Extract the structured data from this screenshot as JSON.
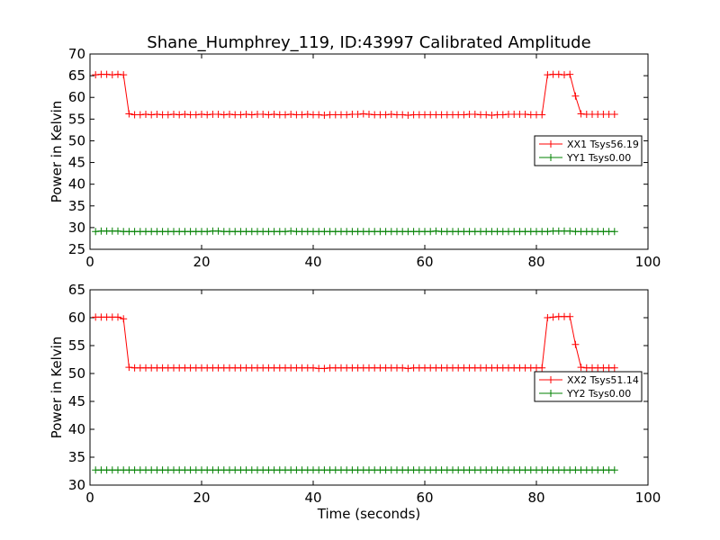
{
  "figure": {
    "title": "Shane_Humphrey_119, ID:43997 Calibrated Amplitude",
    "xlabel": "Time (seconds)"
  },
  "chart_data": [
    {
      "type": "line",
      "title": "Shane_Humphrey_119, ID:43997 Calibrated Amplitude",
      "xlabel": "",
      "ylabel": "Power in Kelvin",
      "xlim": [
        0,
        100
      ],
      "ylim": [
        25,
        70
      ],
      "xticks": [
        "0",
        "20",
        "40",
        "60",
        "80",
        "100"
      ],
      "yticks": [
        "25",
        "30",
        "35",
        "40",
        "45",
        "50",
        "55",
        "60",
        "65",
        "70"
      ],
      "grid": false,
      "legend_position": "center-right",
      "x": [
        1,
        2,
        3,
        4,
        5,
        6,
        7,
        8,
        9,
        10,
        11,
        12,
        13,
        14,
        15,
        16,
        17,
        18,
        19,
        20,
        21,
        22,
        23,
        24,
        25,
        26,
        27,
        28,
        29,
        30,
        31,
        32,
        33,
        34,
        35,
        36,
        37,
        38,
        39,
        40,
        41,
        42,
        43,
        44,
        45,
        46,
        47,
        48,
        49,
        50,
        51,
        52,
        53,
        54,
        55,
        56,
        57,
        58,
        59,
        60,
        61,
        62,
        63,
        64,
        65,
        66,
        67,
        68,
        69,
        70,
        71,
        72,
        73,
        74,
        75,
        76,
        77,
        78,
        79,
        80,
        81,
        82,
        83,
        84,
        85,
        86,
        87,
        88,
        89,
        90,
        91,
        92,
        93,
        94
      ],
      "series": [
        {
          "name": "XX1 Tsys56.19",
          "color": "#ff0000",
          "values": [
            65.2,
            65.3,
            65.3,
            65.2,
            65.3,
            65.2,
            56.2,
            56.0,
            56.0,
            56.1,
            56.0,
            56.1,
            56.0,
            56.0,
            56.1,
            56.0,
            56.1,
            56.0,
            56.0,
            56.1,
            56.0,
            56.1,
            56.1,
            56.0,
            56.1,
            56.0,
            56.0,
            56.1,
            56.0,
            56.1,
            56.1,
            56.0,
            56.1,
            56.0,
            56.0,
            56.1,
            56.0,
            56.0,
            56.1,
            56.0,
            56.0,
            55.9,
            56.0,
            56.0,
            56.0,
            56.0,
            56.1,
            56.1,
            56.2,
            56.1,
            56.0,
            56.0,
            56.0,
            56.1,
            56.0,
            56.0,
            55.9,
            56.0,
            56.0,
            56.0,
            56.0,
            56.0,
            56.0,
            56.0,
            56.0,
            56.0,
            56.0,
            56.1,
            56.1,
            56.0,
            56.0,
            55.9,
            56.0,
            56.0,
            56.1,
            56.1,
            56.1,
            56.1,
            56.0,
            56.0,
            56.0,
            65.2,
            65.3,
            65.3,
            65.2,
            65.3,
            60.3,
            56.2,
            56.1,
            56.1,
            56.1,
            56.1,
            56.1,
            56.1
          ]
        },
        {
          "name": "YY1 Tsys0.00",
          "color": "#008000",
          "values": [
            29.1,
            29.2,
            29.2,
            29.2,
            29.2,
            29.1,
            29.1,
            29.1,
            29.1,
            29.1,
            29.1,
            29.1,
            29.1,
            29.1,
            29.1,
            29.1,
            29.1,
            29.1,
            29.1,
            29.1,
            29.1,
            29.2,
            29.2,
            29.1,
            29.1,
            29.1,
            29.1,
            29.1,
            29.1,
            29.1,
            29.1,
            29.1,
            29.1,
            29.1,
            29.1,
            29.2,
            29.1,
            29.1,
            29.1,
            29.1,
            29.1,
            29.1,
            29.1,
            29.1,
            29.1,
            29.1,
            29.1,
            29.1,
            29.1,
            29.1,
            29.1,
            29.1,
            29.1,
            29.1,
            29.1,
            29.1,
            29.1,
            29.1,
            29.1,
            29.1,
            29.1,
            29.2,
            29.1,
            29.1,
            29.1,
            29.1,
            29.1,
            29.1,
            29.1,
            29.1,
            29.1,
            29.1,
            29.1,
            29.1,
            29.1,
            29.1,
            29.1,
            29.1,
            29.1,
            29.1,
            29.1,
            29.1,
            29.2,
            29.2,
            29.2,
            29.2,
            29.1,
            29.1,
            29.1,
            29.1,
            29.1,
            29.1,
            29.1,
            29.1
          ]
        }
      ]
    },
    {
      "type": "line",
      "title": "",
      "xlabel": "Time (seconds)",
      "ylabel": "Power in Kelvin",
      "xlim": [
        0,
        100
      ],
      "ylim": [
        30,
        65
      ],
      "xticks": [
        "0",
        "20",
        "40",
        "60",
        "80",
        "100"
      ],
      "yticks": [
        "30",
        "35",
        "40",
        "45",
        "50",
        "55",
        "60",
        "65"
      ],
      "grid": false,
      "legend_position": "center-right",
      "x": [
        1,
        2,
        3,
        4,
        5,
        6,
        7,
        8,
        9,
        10,
        11,
        12,
        13,
        14,
        15,
        16,
        17,
        18,
        19,
        20,
        21,
        22,
        23,
        24,
        25,
        26,
        27,
        28,
        29,
        30,
        31,
        32,
        33,
        34,
        35,
        36,
        37,
        38,
        39,
        40,
        41,
        42,
        43,
        44,
        45,
        46,
        47,
        48,
        49,
        50,
        51,
        52,
        53,
        54,
        55,
        56,
        57,
        58,
        59,
        60,
        61,
        62,
        63,
        64,
        65,
        66,
        67,
        68,
        69,
        70,
        71,
        72,
        73,
        74,
        75,
        76,
        77,
        78,
        79,
        80,
        81,
        82,
        83,
        84,
        85,
        86,
        87,
        88,
        89,
        90,
        91,
        92,
        93,
        94
      ],
      "series": [
        {
          "name": "XX2 Tsys51.14",
          "color": "#ff0000",
          "values": [
            60.1,
            60.1,
            60.1,
            60.1,
            60.1,
            59.8,
            51.1,
            51.0,
            51.0,
            51.0,
            51.0,
            51.0,
            51.0,
            51.0,
            51.0,
            51.0,
            51.0,
            51.0,
            51.0,
            51.0,
            51.0,
            51.0,
            51.0,
            51.0,
            51.0,
            51.0,
            51.0,
            51.0,
            51.0,
            51.0,
            51.0,
            51.0,
            51.0,
            51.0,
            51.0,
            51.0,
            51.0,
            51.0,
            51.0,
            51.0,
            50.9,
            50.9,
            51.0,
            51.0,
            51.0,
            51.0,
            51.0,
            51.0,
            51.0,
            51.0,
            51.0,
            51.0,
            51.0,
            51.0,
            51.0,
            51.0,
            50.9,
            51.0,
            51.0,
            51.0,
            51.0,
            51.0,
            51.0,
            51.0,
            51.0,
            51.0,
            51.0,
            51.0,
            51.0,
            51.0,
            51.0,
            51.0,
            51.0,
            51.0,
            51.0,
            51.0,
            51.0,
            51.0,
            51.0,
            51.0,
            51.0,
            60.0,
            60.1,
            60.2,
            60.2,
            60.2,
            55.2,
            51.1,
            51.0,
            51.0,
            51.0,
            51.0,
            51.0,
            51.0
          ]
        },
        {
          "name": "YY2 Tsys0.00",
          "color": "#008000",
          "values": [
            32.7,
            32.7,
            32.7,
            32.7,
            32.7,
            32.7,
            32.7,
            32.7,
            32.7,
            32.7,
            32.7,
            32.7,
            32.7,
            32.7,
            32.7,
            32.7,
            32.7,
            32.7,
            32.7,
            32.7,
            32.7,
            32.7,
            32.7,
            32.7,
            32.7,
            32.7,
            32.7,
            32.7,
            32.7,
            32.7,
            32.7,
            32.7,
            32.7,
            32.7,
            32.7,
            32.7,
            32.7,
            32.7,
            32.7,
            32.7,
            32.7,
            32.7,
            32.7,
            32.7,
            32.7,
            32.7,
            32.7,
            32.7,
            32.7,
            32.7,
            32.7,
            32.7,
            32.7,
            32.7,
            32.7,
            32.7,
            32.7,
            32.7,
            32.7,
            32.7,
            32.7,
            32.7,
            32.7,
            32.7,
            32.7,
            32.7,
            32.7,
            32.7,
            32.7,
            32.7,
            32.7,
            32.7,
            32.7,
            32.7,
            32.7,
            32.7,
            32.7,
            32.7,
            32.7,
            32.7,
            32.7,
            32.7,
            32.7,
            32.7,
            32.7,
            32.7,
            32.7,
            32.7,
            32.7,
            32.7,
            32.7,
            32.7,
            32.7,
            32.7
          ]
        }
      ]
    }
  ]
}
